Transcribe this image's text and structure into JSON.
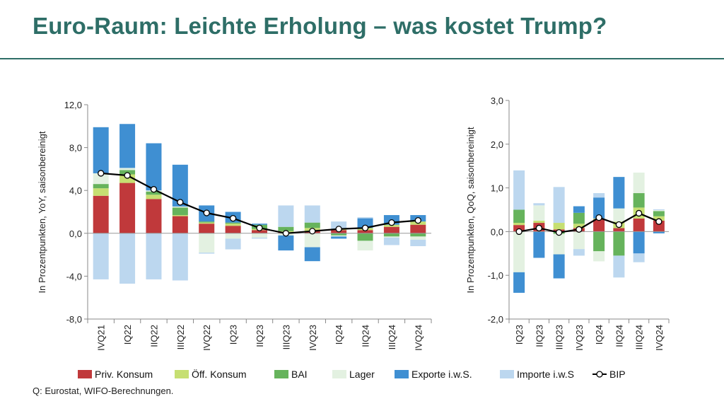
{
  "title": "Euro-Raum: Leichte Erholung – was kostet Trump?",
  "source": "Q: Eurostat, WIFO-Berechnungen.",
  "colors": {
    "accent": "#2e6e67",
    "priv_konsum": "#c0393b",
    "oeff_konsum": "#c6df72",
    "bai": "#66b35c",
    "lager": "#e3f1e1",
    "exporte": "#3f8fd2",
    "importe": "#bcd7ef",
    "bip": "#000000"
  },
  "legend": [
    {
      "key": "priv_konsum",
      "label": "Priv. Konsum"
    },
    {
      "key": "oeff_konsum",
      "label": "Öff. Konsum"
    },
    {
      "key": "bai",
      "label": "BAI"
    },
    {
      "key": "lager",
      "label": "Lager"
    },
    {
      "key": "exporte",
      "label": "Exporte i.w.S."
    },
    {
      "key": "importe",
      "label": "Importe i.w.S"
    },
    {
      "key": "bip",
      "label": "BIP"
    }
  ],
  "chart_data": [
    {
      "type": "bar",
      "stacked": true,
      "title": "",
      "ylabel": "In Prozentpunkten, YoY, saisonbereinigt",
      "ylim": [
        -8,
        12
      ],
      "yticks": [
        "12,0",
        "8,0",
        "4,0",
        "0,0",
        "-4,0",
        "-8,0"
      ],
      "categories": [
        "IVQ21",
        "IQ22",
        "IIQ22",
        "IIIQ22",
        "IVQ22",
        "IQ23",
        "IIQ23",
        "IIIQ23",
        "IVQ23",
        "IQ24",
        "IIQ24",
        "IIIQ24",
        "IVQ24"
      ],
      "series": [
        {
          "name": "Priv. Konsum",
          "key": "priv_konsum",
          "values": [
            3.5,
            4.7,
            3.2,
            1.6,
            0.9,
            0.7,
            0.3,
            0.1,
            0.2,
            0.3,
            0.3,
            0.6,
            0.8
          ]
        },
        {
          "name": "Öff. Konsum",
          "key": "oeff_konsum",
          "values": [
            0.7,
            0.8,
            0.4,
            0.1,
            0.1,
            0.2,
            0.1,
            0.1,
            0.3,
            0.1,
            0.2,
            0.2,
            0.3
          ]
        },
        {
          "name": "BAI",
          "key": "bai",
          "values": [
            0.4,
            0.4,
            0.3,
            0.7,
            0.1,
            0.1,
            0.4,
            0.4,
            0.5,
            -0.2,
            -0.7,
            -0.3,
            -0.3
          ]
        },
        {
          "name": "Lager",
          "key": "lager",
          "values": [
            1.0,
            0.2,
            0.1,
            0.1,
            -1.8,
            -0.5,
            -0.4,
            -0.2,
            -1.3,
            -0.1,
            -0.9,
            -0.1,
            -0.3
          ]
        },
        {
          "name": "Exporte i.w.S.",
          "key": "exporte",
          "values": [
            4.3,
            4.1,
            4.4,
            3.9,
            1.5,
            1.0,
            0.1,
            -1.4,
            -1.3,
            -0.2,
            0.9,
            0.9,
            0.6
          ]
        },
        {
          "name": "Importe i.w.S",
          "key": "importe",
          "values": [
            -4.3,
            -4.7,
            -4.3,
            -4.4,
            -0.1,
            -1.0,
            -0.1,
            2.0,
            1.6,
            0.7,
            0.1,
            -0.7,
            -0.6
          ]
        }
      ],
      "line": {
        "name": "BIP",
        "key": "bip",
        "values": [
          5.6,
          5.4,
          4.1,
          2.9,
          1.9,
          1.4,
          0.5,
          0.0,
          0.2,
          0.4,
          0.5,
          1.0,
          1.2
        ]
      }
    },
    {
      "type": "bar",
      "stacked": true,
      "title": "",
      "ylabel": "In Prozentpunkten, QoQ, saisonbereinigt",
      "ylim": [
        -2,
        3
      ],
      "yticks": [
        "3,0",
        "2,0",
        "1,0",
        "0,0",
        "-1,0",
        "-2,0"
      ],
      "categories": [
        "IQ23",
        "IIQ23",
        "IIIQ23",
        "IVQ23",
        "IQ24",
        "IIQ24",
        "IIIQ24",
        "IVQ24"
      ],
      "series": [
        {
          "name": "Priv. Konsum",
          "key": "priv_konsum",
          "values": [
            0.15,
            0.2,
            0.05,
            0.08,
            0.28,
            0.08,
            0.3,
            0.25
          ]
        },
        {
          "name": "Öff. Konsum",
          "key": "oeff_konsum",
          "values": [
            0.05,
            0.05,
            0.15,
            0.1,
            0.02,
            0.15,
            0.25,
            0.1
          ]
        },
        {
          "name": "BAI",
          "key": "bai",
          "values": [
            0.3,
            0.0,
            -0.05,
            0.25,
            -0.45,
            -0.55,
            0.33,
            0.12
          ]
        },
        {
          "name": "Lager",
          "key": "lager",
          "values": [
            -0.93,
            0.35,
            -0.47,
            -0.4,
            -0.23,
            0.3,
            0.47,
            0.02
          ]
        },
        {
          "name": "Exporte i.w.S.",
          "key": "exporte",
          "values": [
            -0.47,
            -0.6,
            -0.55,
            0.15,
            0.48,
            0.72,
            -0.5,
            -0.04
          ]
        },
        {
          "name": "Importe i.w.S",
          "key": "importe",
          "values": [
            0.9,
            0.05,
            0.82,
            -0.15,
            0.1,
            -0.5,
            -0.2,
            0.02
          ]
        }
      ],
      "line": {
        "name": "BIP",
        "key": "bip",
        "values": [
          0.0,
          0.08,
          -0.02,
          0.05,
          0.32,
          0.16,
          0.42,
          0.23
        ]
      }
    }
  ]
}
